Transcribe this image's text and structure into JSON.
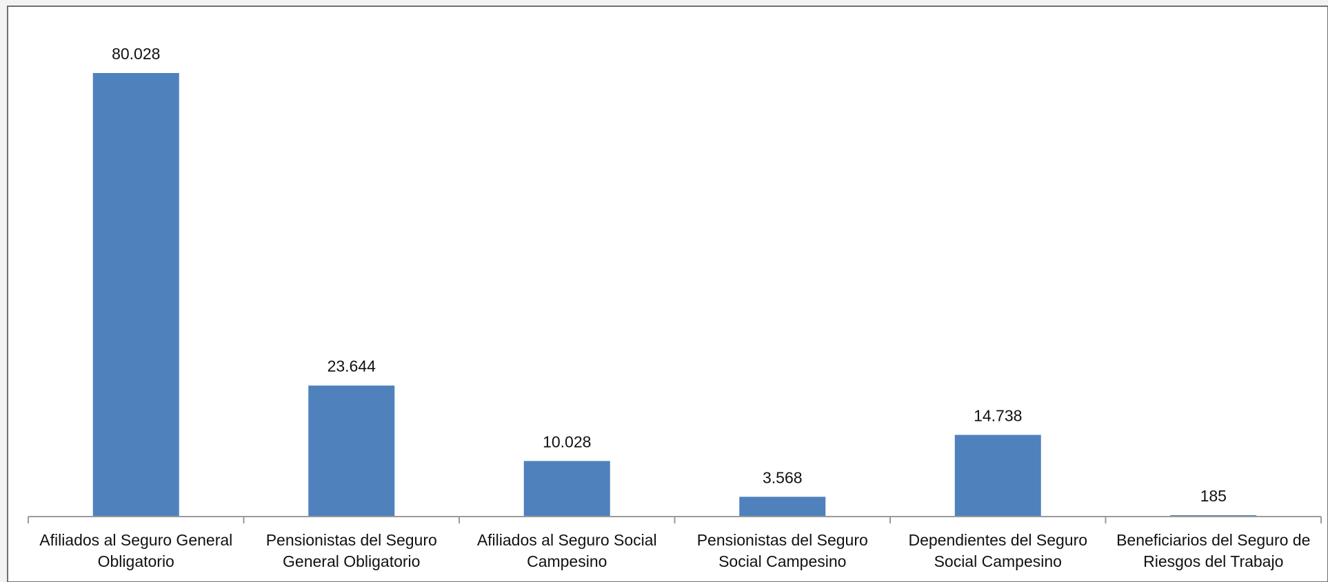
{
  "colors": {
    "bar": "#4f81bd",
    "axis": "#9a9a9a",
    "frame": "#6f6f6f",
    "plot_background": "#ffffff",
    "page_background": "#f3f3f3"
  },
  "chart_data": {
    "type": "bar",
    "title": "",
    "xlabel": "",
    "ylabel": "",
    "ylim": [
      0,
      85000
    ],
    "grid": false,
    "legend": "none",
    "categories": [
      [
        "Afiliados al Seguro General",
        "Obligatorio"
      ],
      [
        "Pensionistas del Seguro",
        "General Obligatorio"
      ],
      [
        "Afiliados al Seguro Social",
        "Campesino"
      ],
      [
        "Pensionistas del Seguro",
        "Social Campesino"
      ],
      [
        "Dependientes del Seguro",
        "Social Campesino"
      ],
      [
        "Beneficiarios del Seguro de",
        "Riesgos del Trabajo"
      ]
    ],
    "values": [
      80028,
      23644,
      10028,
      3568,
      14738,
      185
    ],
    "data_labels": [
      "80.028",
      "23.644",
      "10.028",
      "3.568",
      "14.738",
      "185"
    ]
  }
}
